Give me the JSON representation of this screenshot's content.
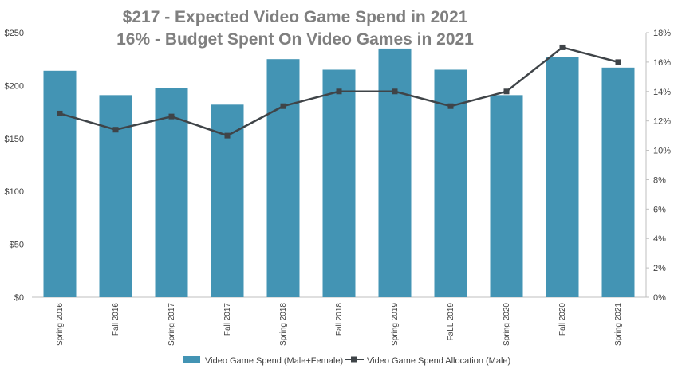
{
  "chart_data": {
    "type": "bar",
    "title": "$217 - Expected Video Game Spend in 2021",
    "subtitle": "16% - Budget Spent On Video Games in 2021",
    "categories": [
      "Spring 2016",
      "Fall 2016",
      "Spring 2017",
      "Fall 2017",
      "Spring 2018",
      "Fall 2018",
      "Spring 2019",
      "FaLL 2019",
      "Spring 2020",
      "Fall 2020",
      "Spring 2021"
    ],
    "series": [
      {
        "name": "Video Game Spend (Male+Female)",
        "type": "bar",
        "axis": "left",
        "color": "#4394b4",
        "values": [
          214,
          191,
          198,
          182,
          225,
          215,
          235,
          215,
          191,
          227,
          217
        ]
      },
      {
        "name": "Video Game Spend Allocation (Male)",
        "type": "line",
        "axis": "right",
        "color": "#3f4448",
        "values": [
          12.5,
          11.4,
          12.3,
          11.0,
          13.0,
          14.0,
          14.0,
          13.0,
          14.0,
          17.0,
          16.0
        ]
      }
    ],
    "y_left": {
      "ylim": [
        0,
        250
      ],
      "ticks": [
        "$0",
        "$50",
        "$100",
        "$150",
        "$200",
        "$250"
      ]
    },
    "y_right": {
      "ylim": [
        0,
        18
      ],
      "ticks": [
        "0%",
        "2%",
        "4%",
        "6%",
        "8%",
        "10%",
        "12%",
        "14%",
        "16%",
        "18%"
      ]
    },
    "grid": false,
    "legend_position": "bottom"
  }
}
